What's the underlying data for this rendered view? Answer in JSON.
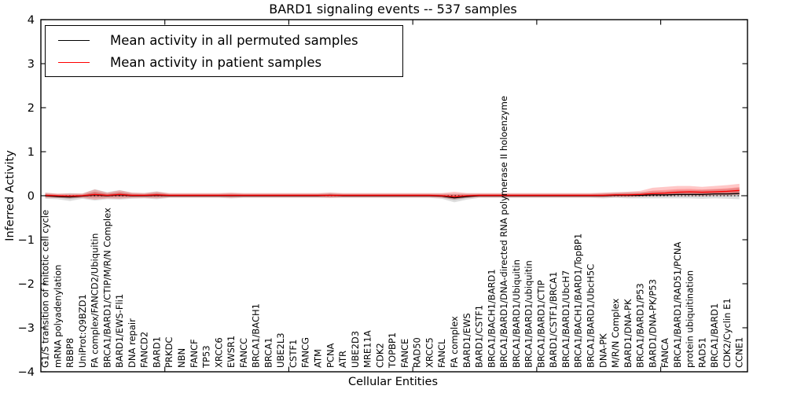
{
  "title": "BARD1 signaling events -- 537 samples",
  "legend": {
    "items": [
      {
        "label": "Mean activity in all permuted samples",
        "color": "#000000"
      },
      {
        "label": "Mean activity in patient samples",
        "color": "#ff0000"
      }
    ],
    "position": "upper left"
  },
  "axes": {
    "ylabel": "Inferred Activity",
    "xlabel": "Cellular Entities",
    "ylim": [
      -4,
      4
    ],
    "yticks": [
      4,
      3,
      2,
      1,
      0,
      -1,
      -2,
      -3,
      -4
    ],
    "yticklabels": [
      "4",
      "3",
      "2",
      "1",
      "0",
      "−1",
      "−2",
      "−3",
      "−4"
    ],
    "xticks_numeric": [
      10,
      20,
      30,
      40,
      50
    ]
  },
  "chart_data": {
    "type": "line",
    "title": "BARD1 signaling events -- 537 samples",
    "xlabel": "Cellular Entities",
    "ylabel": "Inferred Activity",
    "ylim": [
      -4,
      4
    ],
    "zero_line": true,
    "legend_position": "upper left",
    "categories": [
      "G1/S transition of mitotic cell cycle",
      "mRNA polyadenylation",
      "RBBP8",
      "UniProt:Q9BZD1",
      "FA complex/FANCD2/Ubiquitin",
      "BRCA1/BARD1/CTIP/M/R/N Complex",
      "BARD1/EWS-Fli1",
      "DNA repair",
      "FANCD2",
      "BARD1",
      "PRKDC",
      "NBN",
      "FANCF",
      "TP53",
      "XRCC6",
      "EWSR1",
      "FANCC",
      "BRCA1/BACH1",
      "BRCA1",
      "UBE2L3",
      "CSTF1",
      "FANCG",
      "ATM",
      "PCNA",
      "ATR",
      "UBE2D3",
      "MRE11A",
      "CDK2",
      "TOPBP1",
      "FANCE",
      "RAD50",
      "XRCC5",
      "FANCL",
      "FA complex",
      "BARD1/EWS",
      "BARD1/CSTF1",
      "BRCA1/BACH1/BARD1",
      "BRCA1/BARD1/DNA-directed RNA polymerase II holoenzyme",
      "BRCA1/BARD1/Ubiquitin",
      "BRCA1/BARD1/ubiquitin",
      "BRCA1/BARD1/CTIP",
      "BARD1/CSTF1/BRCA1",
      "BRCA1/BARD1/UbcH7",
      "BRCA1/BACH1/BARD1/TopBP1",
      "BRCA1/BARD1/UbcH5C",
      "DNA-PK",
      "M/R/N Complex",
      "BARD1/DNA-PK",
      "BRCA1/BARD1/P53",
      "BARD1/DNA-PK/P53",
      "FANCA",
      "BRCA1/BARD1/RAD51/PCNA",
      "protein ubiquitination",
      "RAD51",
      "BRCA1/BARD1",
      "CDK2/Cyclin E1",
      "CCNE1"
    ],
    "series": [
      {
        "name": "Mean activity in all permuted samples",
        "color": "#000000",
        "band_color": "rgba(0,0,0,0.13)",
        "values": [
          0,
          -0.02,
          -0.03,
          -0.01,
          0.02,
          0,
          0.02,
          0,
          0,
          0.01,
          0,
          0,
          0,
          0,
          0,
          0,
          0,
          0,
          0,
          0,
          0,
          0,
          0,
          0.01,
          0,
          0,
          0,
          0,
          0,
          0,
          0,
          0,
          -0.01,
          -0.05,
          -0.02,
          0,
          0,
          0,
          0,
          0,
          0,
          0,
          0,
          0,
          0,
          0,
          0.01,
          0.01,
          0.01,
          0.02,
          0.02,
          0.03,
          0.03,
          0.03,
          0.04,
          0.04,
          0.05
        ],
        "band_upper": [
          0.07,
          0.04,
          0.06,
          0.05,
          0.15,
          0.08,
          0.13,
          0.07,
          0.06,
          0.1,
          0.05,
          0.05,
          0.05,
          0.05,
          0.05,
          0.06,
          0.05,
          0.05,
          0.05,
          0.05,
          0.05,
          0.05,
          0.05,
          0.07,
          0.05,
          0.05,
          0.05,
          0.05,
          0.05,
          0.05,
          0.05,
          0.05,
          0.05,
          0.05,
          0.05,
          0.05,
          0.05,
          0.05,
          0.05,
          0.05,
          0.05,
          0.05,
          0.05,
          0.05,
          0.05,
          0.06,
          0.07,
          0.08,
          0.08,
          0.1,
          0.1,
          0.12,
          0.12,
          0.13,
          0.14,
          0.15,
          0.18
        ],
        "band_lower": [
          -0.07,
          -0.08,
          -0.12,
          -0.07,
          -0.11,
          -0.08,
          -0.09,
          -0.07,
          -0.06,
          -0.08,
          -0.05,
          -0.05,
          -0.05,
          -0.05,
          -0.05,
          -0.06,
          -0.05,
          -0.05,
          -0.05,
          -0.05,
          -0.05,
          -0.05,
          -0.05,
          -0.05,
          -0.05,
          -0.05,
          -0.05,
          -0.05,
          -0.05,
          -0.05,
          -0.05,
          -0.05,
          -0.07,
          -0.15,
          -0.09,
          -0.05,
          -0.05,
          -0.05,
          -0.05,
          -0.05,
          -0.05,
          -0.05,
          -0.05,
          -0.05,
          -0.05,
          -0.06,
          -0.05,
          -0.06,
          -0.06,
          -0.06,
          -0.06,
          -0.06,
          -0.06,
          -0.07,
          -0.06,
          -0.07,
          -0.08
        ]
      },
      {
        "name": "Mean activity in patient samples",
        "color": "#ff0000",
        "band_color": "rgba(255,0,0,0.22)",
        "values": [
          0.01,
          0,
          -0.01,
          0,
          0.03,
          0.01,
          0.03,
          0.01,
          0.01,
          0.02,
          0.01,
          0.01,
          0.01,
          0.01,
          0.01,
          0.01,
          0.01,
          0.01,
          0.01,
          0.01,
          0.01,
          0.01,
          0.01,
          0.01,
          0.01,
          0.01,
          0.01,
          0.01,
          0.01,
          0.01,
          0.01,
          0.01,
          0,
          -0.02,
          0,
          0.01,
          0.01,
          0.01,
          0.01,
          0.01,
          0.01,
          0.01,
          0.01,
          0.01,
          0.01,
          0.01,
          0.02,
          0.02,
          0.03,
          0.05,
          0.06,
          0.08,
          0.09,
          0.08,
          0.09,
          0.1,
          0.12
        ],
        "band_upper": [
          0.07,
          0.05,
          0.05,
          0.05,
          0.14,
          0.07,
          0.12,
          0.07,
          0.06,
          0.09,
          0.06,
          0.06,
          0.06,
          0.06,
          0.06,
          0.07,
          0.06,
          0.06,
          0.06,
          0.06,
          0.06,
          0.06,
          0.06,
          0.07,
          0.06,
          0.06,
          0.06,
          0.06,
          0.06,
          0.06,
          0.06,
          0.06,
          0.06,
          0.09,
          0.06,
          0.06,
          0.06,
          0.06,
          0.06,
          0.06,
          0.06,
          0.06,
          0.06,
          0.06,
          0.06,
          0.07,
          0.08,
          0.09,
          0.11,
          0.18,
          0.2,
          0.22,
          0.22,
          0.2,
          0.22,
          0.24,
          0.27
        ],
        "band_lower": [
          -0.05,
          -0.05,
          -0.06,
          -0.05,
          -0.09,
          -0.06,
          -0.07,
          -0.05,
          -0.05,
          -0.06,
          -0.04,
          -0.04,
          -0.04,
          -0.04,
          -0.04,
          -0.05,
          -0.04,
          -0.04,
          -0.04,
          -0.04,
          -0.04,
          -0.04,
          -0.04,
          -0.05,
          -0.04,
          -0.04,
          -0.04,
          -0.04,
          -0.04,
          -0.04,
          -0.04,
          -0.04,
          -0.05,
          -0.08,
          -0.05,
          -0.04,
          -0.04,
          -0.04,
          -0.04,
          -0.04,
          -0.04,
          -0.04,
          -0.04,
          -0.04,
          -0.04,
          -0.04,
          -0.03,
          -0.03,
          -0.02,
          -0.01,
          0,
          0.01,
          0.01,
          0,
          0.01,
          0.01,
          0.02
        ]
      }
    ]
  }
}
